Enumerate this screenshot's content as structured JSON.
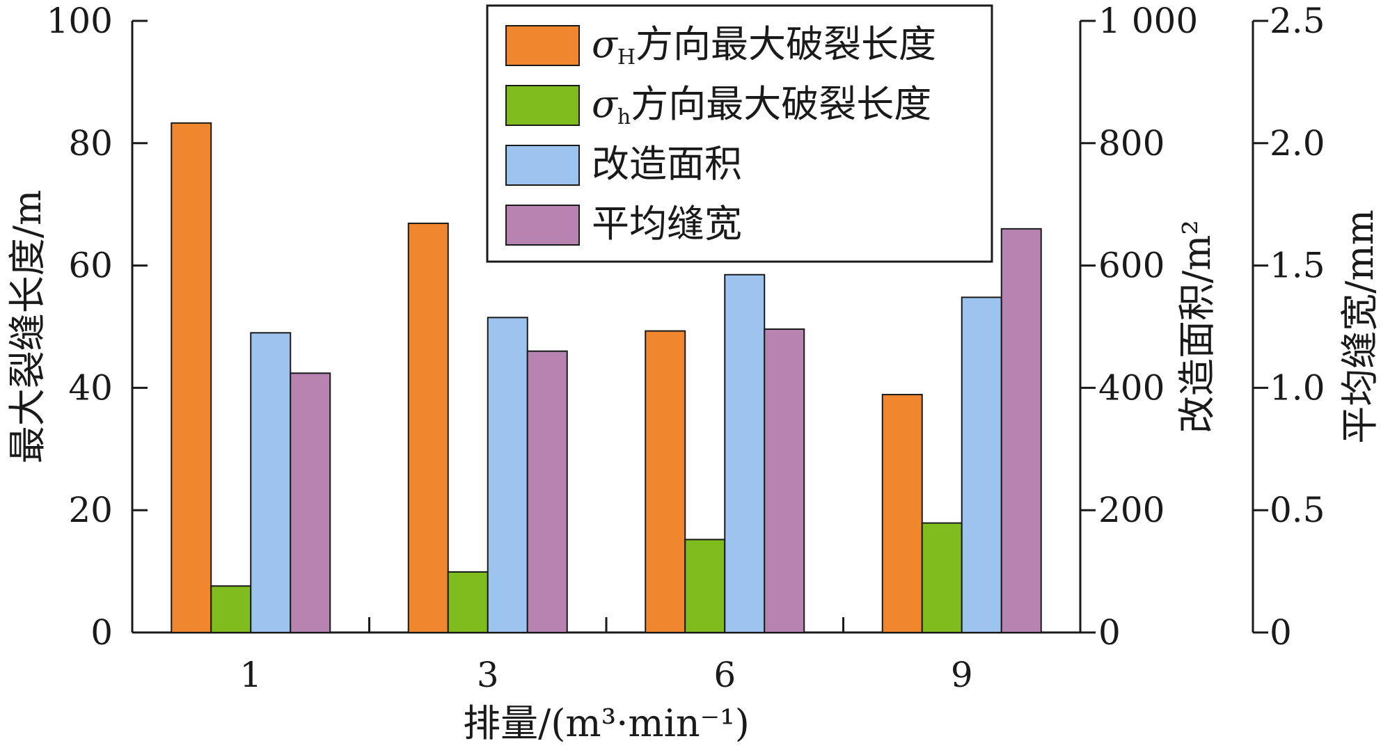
{
  "chart_data": {
    "type": "bar",
    "categories": [
      "1",
      "3",
      "6",
      "9"
    ],
    "xlabel": "排量/(m³·min⁻¹)",
    "axes": {
      "left": {
        "label": "最大裂缝长度/m",
        "range": [
          0,
          100
        ],
        "ticks": [
          "0",
          "20",
          "40",
          "60",
          "80",
          "100"
        ]
      },
      "right1": {
        "label": "改造面积/m²",
        "range": [
          0,
          1000
        ],
        "ticks": [
          "0",
          "200",
          "400",
          "600",
          "800",
          "1 000"
        ]
      },
      "right2": {
        "label": "平均缝宽/mm",
        "range": [
          0,
          2.5
        ],
        "ticks": [
          "0",
          "0.5",
          "1.0",
          "1.5",
          "2.0",
          "2.5"
        ]
      }
    },
    "series": [
      {
        "name": "σH方向最大破裂长度",
        "name_symbol": "σ",
        "name_sub": "H",
        "name_rest": "方向最大破裂长度",
        "axis": "left",
        "color": "#f0862e",
        "values": [
          83.3,
          66.9,
          49.3,
          38.9
        ]
      },
      {
        "name": "σh方向最大破裂长度",
        "name_symbol": "σ",
        "name_sub": "h",
        "name_rest": "方向最大破裂长度",
        "axis": "left",
        "color": "#7fbd1f",
        "values": [
          7.6,
          9.9,
          15.2,
          17.9
        ]
      },
      {
        "name": "改造面积",
        "axis": "right1",
        "color": "#9cc4ef",
        "values": [
          490,
          515,
          585,
          548
        ]
      },
      {
        "name": "平均缝宽",
        "axis": "right2",
        "color": "#b784b2",
        "values": [
          1.06,
          1.15,
          1.24,
          1.65
        ]
      }
    ],
    "legend_position": "top-center",
    "grid": false
  }
}
